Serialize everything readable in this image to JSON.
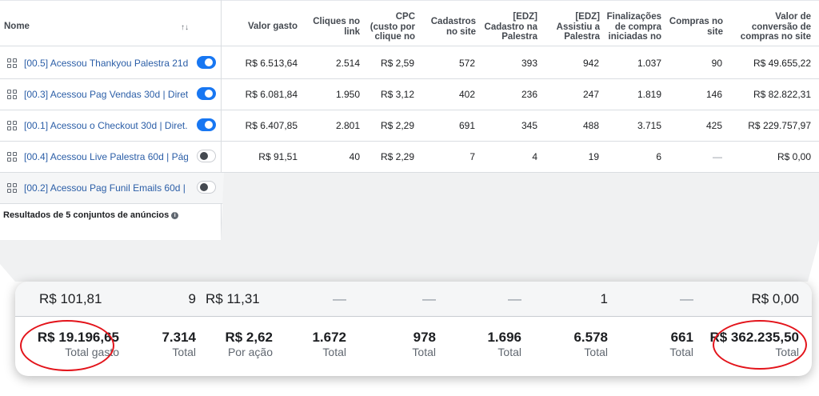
{
  "header": {
    "name": "Nome",
    "sort_glyph": "↑↓",
    "valor_gasto": "Valor gasto",
    "cliques": [
      "Cliques no",
      "link"
    ],
    "cpc": [
      "CPC",
      "(custo por",
      "clique no"
    ],
    "cadastros": [
      "Cadastros",
      "no site"
    ],
    "edz_cad": [
      "[EDZ]",
      "Cadastro na",
      "Palestra"
    ],
    "edz_assist": [
      "[EDZ]",
      "Assistiu a",
      "Palestra"
    ],
    "finalizacoes": [
      "Finalizações",
      "de compra",
      "iniciadas no"
    ],
    "compras": [
      "Compras no",
      "site"
    ],
    "valor_conv": [
      "Valor de",
      "conversão de",
      "compras no site"
    ]
  },
  "rows": [
    {
      "name": "[00.5] Acessou Thankyou Palestra 21d...",
      "toggle": "on",
      "gasto": "R$ 6.513,64",
      "cliques": "2.514",
      "cpc": "R$ 2,59",
      "cadastros": "572",
      "edz_cad": "393",
      "edz_assist": "942",
      "finalizacoes": "1.037",
      "compras": "90",
      "valor": "R$ 49.655,22"
    },
    {
      "name": "[00.3] Acessou Pag Vendas 30d | Diret...",
      "toggle": "on",
      "gasto": "R$ 6.081,84",
      "cliques": "1.950",
      "cpc": "R$ 3,12",
      "cadastros": "402",
      "edz_cad": "236",
      "edz_assist": "247",
      "finalizacoes": "1.819",
      "compras": "146",
      "valor": "R$ 82.822,31"
    },
    {
      "name": "[00.1] Acessou o Checkout 30d | Diret...",
      "toggle": "on",
      "gasto": "R$ 6.407,85",
      "cliques": "2.801",
      "cpc": "R$ 2,29",
      "cadastros": "691",
      "edz_cad": "345",
      "edz_assist": "488",
      "finalizacoes": "3.715",
      "compras": "425",
      "valor": "R$ 229.757,97"
    },
    {
      "name": "[00.4] Acessou Live Palestra 60d | Pág...",
      "toggle": "off",
      "gasto": "R$ 91,51",
      "cliques": "40",
      "cpc": "R$ 2,29",
      "cadastros": "7",
      "edz_cad": "4",
      "edz_assist": "19",
      "finalizacoes": "6",
      "compras": "—",
      "valor": "R$ 0,00"
    },
    {
      "name": "[00.2] Acessou Pag Funil Emails 60d | ...",
      "toggle": "off",
      "gasto": "R$ 101,81",
      "cliques": "9",
      "cpc": "R$ 11,31",
      "cadastros": "—",
      "edz_cad": "—",
      "edz_assist": "—",
      "finalizacoes": "1",
      "compras": "—",
      "valor": "R$ 0,00"
    }
  ],
  "totals": {
    "label": "Resultados de 5 conjuntos de anúncios",
    "info_icon": "i",
    "gasto": {
      "v": "R$ 19.196,65",
      "s": "Total gasto"
    },
    "cliques": {
      "v": "7.314",
      "s": "Total"
    },
    "cpc": {
      "v": "R$ 2,62",
      "s": "Por ação"
    },
    "cadastros": {
      "v": "1.672",
      "s": "Total"
    },
    "edz_cad": {
      "v": "978",
      "s": "Total"
    },
    "edz_assist": {
      "v": "1.696",
      "s": "Total"
    },
    "finalizacoes": {
      "v": "6.578",
      "s": "Total"
    },
    "compras": {
      "v": "661",
      "s": "Total"
    },
    "valor": {
      "v": "R$ 362.235,50",
      "s": "Total"
    }
  },
  "colors": {
    "link": "#2b5ea7",
    "toggle_on": "#1877f2",
    "highlight": "#e3141b"
  }
}
